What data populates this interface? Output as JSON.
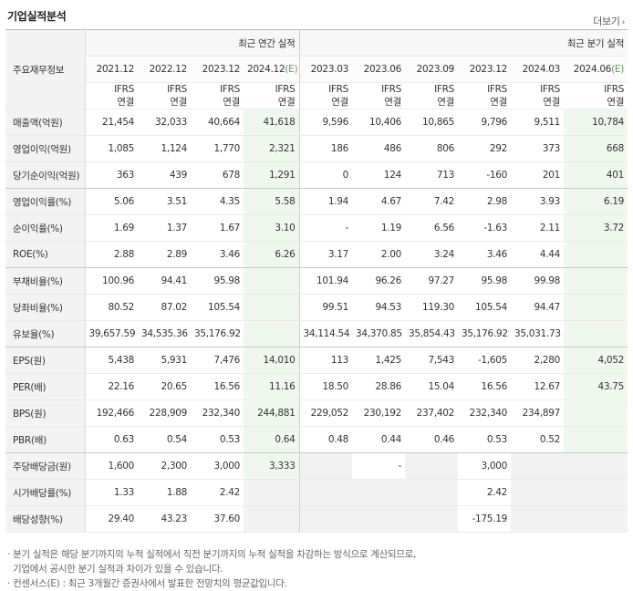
{
  "title": "기업실적분석",
  "more_label": "더보기",
  "row_header_label": "주요재무정보",
  "group_annual": "최근 연간 실적",
  "group_quarter": "최근 분기 실적",
  "periods": [
    "2021.12",
    "2022.12",
    "2023.12",
    "2024.12(E)",
    "2023.03",
    "2023.06",
    "2023.09",
    "2023.12",
    "2024.03",
    "2024.06(E)"
  ],
  "basis_top": "IFRS",
  "basis_bottom": "연결",
  "rows": [
    {
      "label": "매출액(억원)",
      "values": [
        "21,454",
        "32,033",
        "40,664",
        "41,618",
        "9,596",
        "10,406",
        "10,865",
        "9,796",
        "9,511",
        "10,784"
      ]
    },
    {
      "label": "영업이익(억원)",
      "values": [
        "1,085",
        "1,124",
        "1,770",
        "2,321",
        "186",
        "486",
        "806",
        "292",
        "373",
        "668"
      ]
    },
    {
      "label": "당기순이익(억원)",
      "values": [
        "363",
        "439",
        "678",
        "1,291",
        "0",
        "124",
        "713",
        "-160",
        "201",
        "401"
      ]
    },
    {
      "label": "영업이익률(%)",
      "values": [
        "5.06",
        "3.51",
        "4.35",
        "5.58",
        "1.94",
        "4.67",
        "7.42",
        "2.98",
        "3.93",
        "6.19"
      ]
    },
    {
      "label": "순이익률(%)",
      "values": [
        "1.69",
        "1.37",
        "1.67",
        "3.10",
        "-",
        "1.19",
        "6.56",
        "-1.63",
        "2.11",
        "3.72"
      ]
    },
    {
      "label": "ROE(%)",
      "values": [
        "2.88",
        "2.89",
        "3.46",
        "6.26",
        "3.17",
        "2.00",
        "3.24",
        "3.46",
        "4.44",
        ""
      ]
    },
    {
      "label": "부채비율(%)",
      "values": [
        "100.96",
        "94.41",
        "95.98",
        "",
        "101.94",
        "96.26",
        "97.27",
        "95.98",
        "99.98",
        ""
      ]
    },
    {
      "label": "당좌비율(%)",
      "values": [
        "80.52",
        "87.02",
        "105.54",
        "",
        "99.51",
        "94.53",
        "119.30",
        "105.54",
        "94.47",
        ""
      ]
    },
    {
      "label": "유보율(%)",
      "values": [
        "39,657.59",
        "34,535.36",
        "35,176.92",
        "",
        "34,114.54",
        "34,370.85",
        "35,854.43",
        "35,176.92",
        "35,031.73",
        ""
      ]
    },
    {
      "label": "EPS(원)",
      "values": [
        "5,438",
        "5,931",
        "7,476",
        "14,010",
        "113",
        "1,425",
        "7,543",
        "-1,605",
        "2,280",
        "4,052"
      ]
    },
    {
      "label": "PER(배)",
      "values": [
        "22.16",
        "20.65",
        "16.56",
        "11.16",
        "18.50",
        "28.86",
        "15.04",
        "16.56",
        "12.67",
        "43.75"
      ]
    },
    {
      "label": "BPS(원)",
      "values": [
        "192,466",
        "228,909",
        "232,340",
        "244,881",
        "229,052",
        "230,192",
        "237,402",
        "232,340",
        "234,897",
        ""
      ]
    },
    {
      "label": "PBR(배)",
      "values": [
        "0.63",
        "0.54",
        "0.53",
        "0.64",
        "0.48",
        "0.44",
        "0.46",
        "0.53",
        "0.52",
        ""
      ]
    },
    {
      "label": "주당배당금(원)",
      "values": [
        "1,600",
        "2,300",
        "3,000",
        "3,333",
        "",
        "-",
        "",
        "3,000",
        "",
        ""
      ]
    },
    {
      "label": "시가배당률(%)",
      "values": [
        "1.33",
        "1.88",
        "2.42",
        "",
        "",
        "",
        "",
        "2.42",
        "",
        ""
      ]
    },
    {
      "label": "배당성향(%)",
      "values": [
        "29.40",
        "43.23",
        "37.60",
        "",
        "",
        "",
        "",
        "-175.19",
        "",
        ""
      ]
    }
  ],
  "notes": [
    "· 분기 실적은 해당 분기까지의 누적 실적에서 직전 분기까지의 누적 실적을 차감하는 방식으로 계산되므로,",
    "  기업에서 공시한 분기 실적과 차이가 있을 수 있습니다.",
    "· 컨센서스(E) : 최근 3개월간 증권사에서 발표한 전망치의 평균값입니다."
  ],
  "colors": {
    "negative": "#e0001b",
    "ifrs": "#e86f1f",
    "estimate_bg": "#eef8ee",
    "shaded_bg": "#f2f2f2"
  }
}
